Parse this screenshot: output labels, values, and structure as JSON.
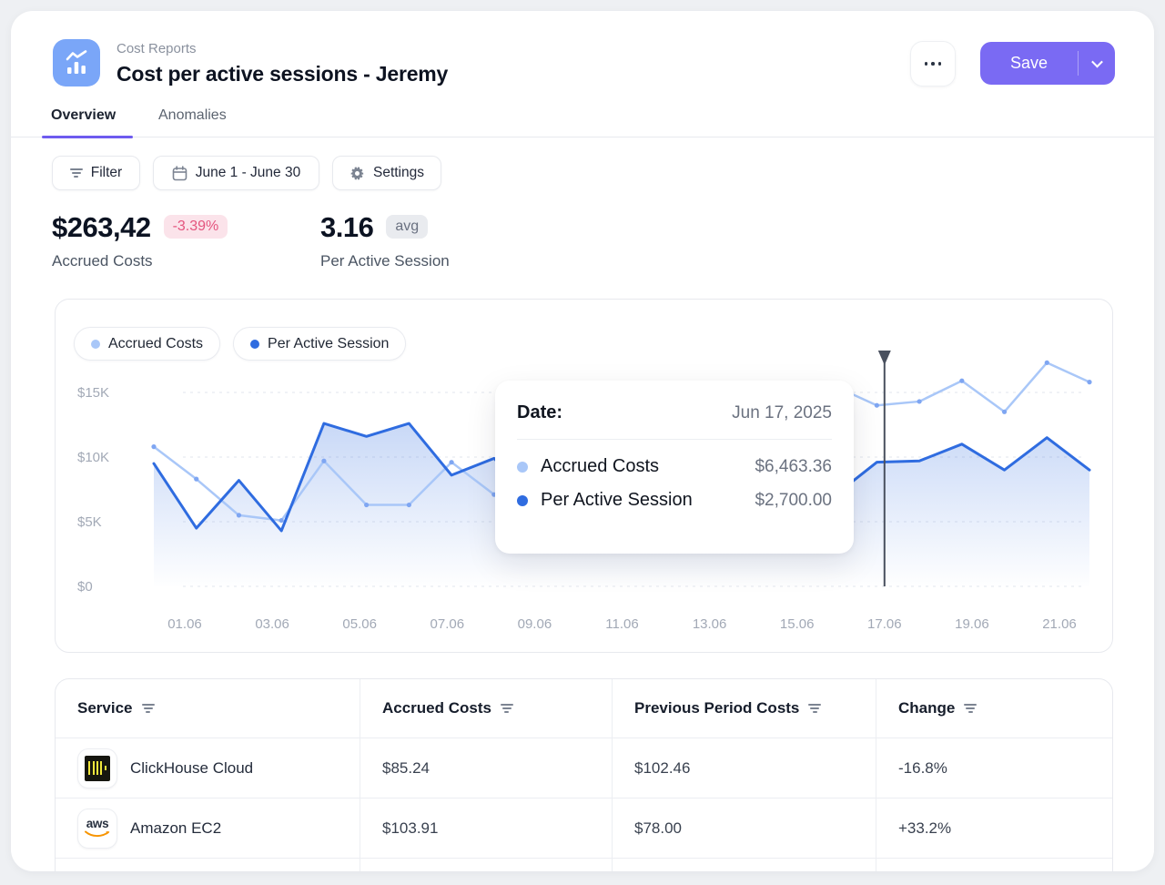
{
  "header": {
    "breadcrumb": "Cost Reports",
    "title": "Cost per active sessions - Jeremy",
    "save_label": "Save"
  },
  "tabs": [
    {
      "label": "Overview",
      "active": true
    },
    {
      "label": "Anomalies",
      "active": false
    }
  ],
  "toolbar": {
    "filter_label": "Filter",
    "date_range_label": "June 1 - June 30",
    "settings_label": "Settings"
  },
  "kpis": [
    {
      "value": "$263,42",
      "badge": "-3.39%",
      "label": "Accrued Costs"
    },
    {
      "value": "3.16",
      "badge": "avg",
      "label": "Per Active Session"
    }
  ],
  "chart_data": {
    "type": "area",
    "title": "Accrued Costs vs Per Active Session, daily",
    "xlabel": "",
    "ylabel": "",
    "ylim": [
      0,
      18000
    ],
    "grid": true,
    "legend_position": "top-left",
    "y_ticks": [
      {
        "label": "$15K",
        "value": 15000
      },
      {
        "label": "$10K",
        "value": 10000
      },
      {
        "label": "$5K",
        "value": 5000
      },
      {
        "label": "$0",
        "value": 0
      }
    ],
    "x_tick_labels": [
      "01.06",
      "03.06",
      "05.06",
      "07.06",
      "09.06",
      "11.06",
      "13.06",
      "15.06",
      "17.06",
      "19.06",
      "21.06"
    ],
    "highlight_tick_index": 8,
    "series": [
      {
        "name": "Accrued Costs",
        "color": "#a9c7f8",
        "marker_color": "#7fa6f2",
        "values": [
          10800,
          8300,
          5500,
          5100,
          9700,
          6300,
          6300,
          9600,
          7100,
          8600,
          10500,
          12000,
          13000,
          13500,
          14200,
          14900,
          15500,
          14000,
          14300,
          15900,
          13500,
          17300,
          15800
        ]
      },
      {
        "name": "Per Active Session",
        "color": "#2f6ce0",
        "area": true,
        "values": [
          9500,
          4500,
          8200,
          4300,
          12600,
          11600,
          12600,
          8600,
          9900,
          6600,
          4500,
          4000,
          4500,
          5000,
          5500,
          6200,
          7000,
          9600,
          9700,
          11000,
          9000,
          11500,
          9000
        ]
      }
    ]
  },
  "tooltip": {
    "date_label": "Date:",
    "date_value": "Jun 17, 2025",
    "rows": [
      {
        "label": "Accrued Costs",
        "value": "$6,463.36"
      },
      {
        "label": "Per Active Session",
        "value": "$2,700.00"
      }
    ]
  },
  "table": {
    "columns": [
      "Service",
      "Accrued Costs",
      "Previous Period Costs",
      "Change"
    ],
    "rows": [
      {
        "service": "ClickHouse Cloud",
        "icon": "clickhouse-logo",
        "accrued": "$85.24",
        "previous": "$102.46",
        "change": "-16.8%"
      },
      {
        "service": "Amazon EC2",
        "icon": "aws-logo",
        "accrued": "$103.91",
        "previous": "$78.00",
        "change": "+33.2%"
      }
    ]
  },
  "colors": {
    "accent_purple": "#7a6af3",
    "tab_underline": "#6e5bef",
    "negative_badge_text": "#e4557e",
    "series_light": "#a9c7f8",
    "series_dark": "#2f6ce0",
    "clickhouse_yellow": "#f0e63c",
    "aws_orange": "#f79400"
  }
}
